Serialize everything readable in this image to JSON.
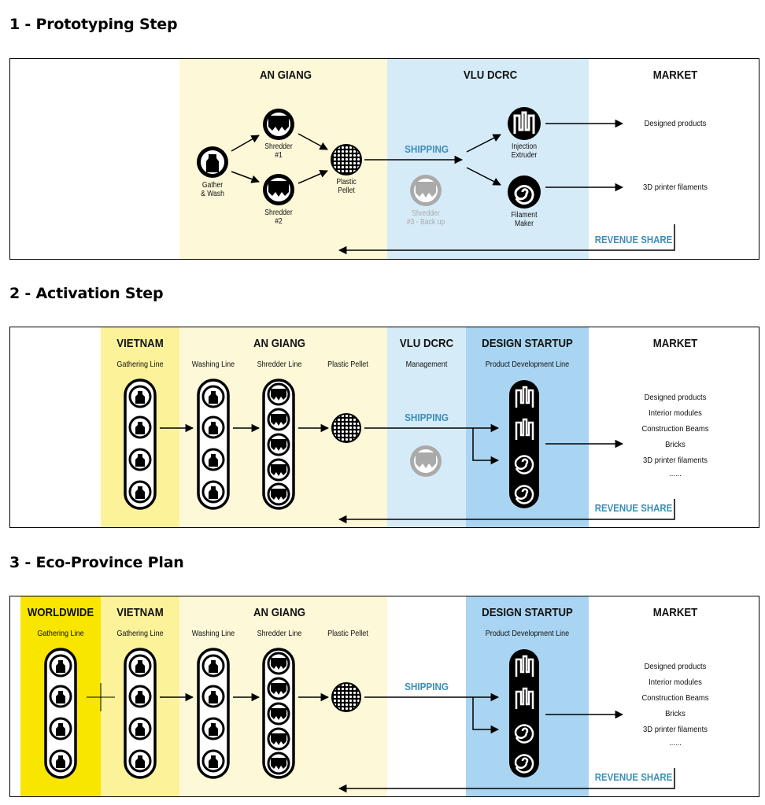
{
  "sections": [
    {
      "title": "1 - Prototyping Step",
      "columns": {
        "an_giang": "AN GIANG",
        "vlu_dcrc": "VLU DCRC",
        "market": "MARKET"
      },
      "nodes": {
        "gather": "Gather\n& Wash",
        "shredder1": "Shredder\n#1",
        "shredder2": "Shredder\n#2",
        "pellet": "Plastic\nPellet",
        "shredder3": "Shredder\n#3 - Back up",
        "injection": "Injection\nExtruder",
        "filament": "Filament\nMaker"
      },
      "shipping": "SHIPPING",
      "outputs": [
        "Designed products",
        "3D printer filaments"
      ],
      "revenue_share": "REVENUE SHARE"
    },
    {
      "title": "2 - Activation Step",
      "columns": {
        "vietnam": "VIETNAM",
        "an_giang": "AN GIANG",
        "vlu_dcrc": "VLU DCRC",
        "design_startup": "DESIGN STARTUP",
        "market": "MARKET"
      },
      "sublabels": {
        "gathering": "Gathering Line",
        "washing": "Washing Line",
        "shredder": "Shredder Line",
        "pellet": "Plastic Pellet",
        "management": "Management",
        "product_dev": "Product Development Line"
      },
      "shipping": "SHIPPING",
      "market_items": [
        "Designed products",
        "Interior modules",
        "Construction Beams",
        "Bricks",
        "3D printer filaments",
        "......"
      ],
      "revenue_share": "REVENUE SHARE"
    },
    {
      "title": "3 - Eco-Province Plan",
      "columns": {
        "worldwide": "WORLDWIDE",
        "vietnam": "VIETNAM",
        "an_giang": "AN GIANG",
        "design_startup": "DESIGN STARTUP",
        "market": "MARKET"
      },
      "sublabels": {
        "ww_gathering": "Gathering Line",
        "gathering": "Gathering Line",
        "washing": "Washing Line",
        "shredder": "Shredder Line",
        "pellet": "Plastic Pellet",
        "product_dev": "Product Development Line"
      },
      "shipping": "SHIPPING",
      "market_items": [
        "Designed products",
        "Interior modules",
        "Construction Beams",
        "Bricks",
        "3D printer filaments",
        "......"
      ],
      "revenue_share": "REVENUE SHARE"
    }
  ],
  "colors": {
    "light_yellow": "#fdf8d8",
    "yellow": "#fcf29a",
    "bright_yellow": "#f8e600",
    "light_blue": "#d6ebf8",
    "blue": "#a9d5f2",
    "accent": "#3b8fb8",
    "grey": "#aaaaaa"
  }
}
